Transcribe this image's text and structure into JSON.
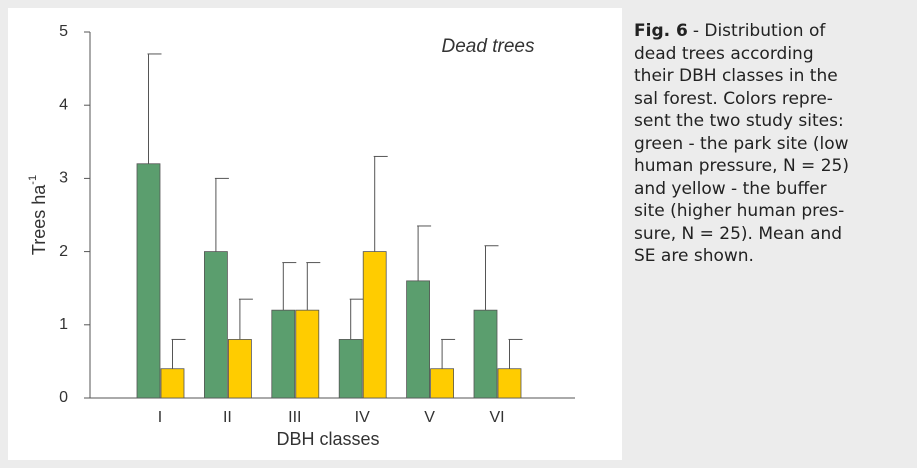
{
  "chart_data": {
    "type": "bar",
    "annotation": "Dead trees",
    "xlabel": "DBH classes",
    "ylabel": "Trees ha",
    "ylabel_sup": "-1",
    "categories": [
      "I",
      "II",
      "III",
      "IV",
      "V",
      "VI"
    ],
    "series": [
      {
        "color": "#5b9e6e",
        "values": [
          3.2,
          2.0,
          1.2,
          0.8,
          1.6,
          1.2
        ],
        "errors": [
          1.5,
          1.0,
          0.65,
          0.55,
          0.75,
          0.88
        ]
      },
      {
        "color": "#ffcc00",
        "values": [
          0.4,
          0.8,
          1.2,
          2.0,
          0.4,
          0.4
        ],
        "errors": [
          0.4,
          0.55,
          0.65,
          1.3,
          0.4,
          0.4
        ]
      }
    ],
    "ylim": [
      0,
      5
    ],
    "yticks": [
      0,
      1,
      2,
      3,
      4,
      5
    ],
    "grid": false
  },
  "caption": {
    "label": "Fig. 6",
    "lines": [
      "- Distribution of",
      "dead trees according",
      "their DBH classes in the",
      "sal forest. Colors repre-",
      "sent the two study sites:",
      "green - the park site (low",
      "human pressure, N = 25)",
      "and yellow - the buffer",
      "site (higher human pres-",
      "sure, N = 25). Mean and",
      "SE are shown."
    ]
  }
}
